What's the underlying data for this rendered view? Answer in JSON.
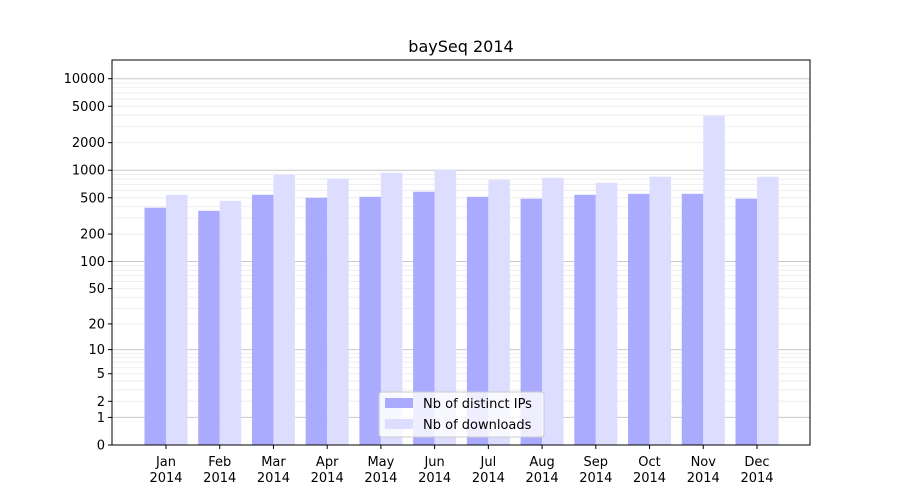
{
  "chart_data": {
    "type": "bar",
    "title": "baySeq 2014",
    "xlabel": "",
    "ylabel": "",
    "yscale": "log10(1+y)",
    "ylim": [
      0,
      16000
    ],
    "grid": true,
    "legend_placement": "lower-center",
    "categories": [
      "Jan\n2014",
      "Feb\n2014",
      "Mar\n2014",
      "Apr\n2014",
      "May\n2014",
      "Jun\n2014",
      "Jul\n2014",
      "Aug\n2014",
      "Sep\n2014",
      "Oct\n2014",
      "Nov\n2014",
      "Dec\n2014"
    ],
    "yticks": [
      0,
      1,
      2,
      5,
      10,
      20,
      50,
      100,
      200,
      500,
      1000,
      2000,
      5000,
      10000
    ],
    "series": [
      {
        "name": "Nb of distinct IPs",
        "color": "#aaaaff",
        "values": [
          389,
          360,
          539,
          500,
          512,
          582,
          512,
          488,
          539,
          552,
          552,
          488
        ]
      },
      {
        "name": "Nb of downloads",
        "color": "#ddddff",
        "values": [
          539,
          463,
          893,
          807,
          939,
          1011,
          787,
          827,
          730,
          849,
          3940,
          849
        ]
      }
    ]
  }
}
